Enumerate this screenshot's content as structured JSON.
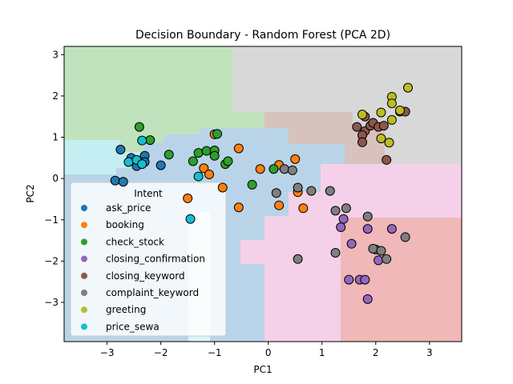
{
  "chart_data": {
    "type": "scatter",
    "title": "Decision Boundary - Random Forest (PCA 2D)",
    "xlabel": "PC1",
    "ylabel": "PC2",
    "xlim": [
      -3.8,
      3.6
    ],
    "ylim": [
      -3.95,
      3.2
    ],
    "xticks": [
      -3,
      -2,
      -1,
      0,
      1,
      2,
      3
    ],
    "yticks": [
      -3,
      -2,
      -1,
      0,
      1,
      2,
      3
    ],
    "grid": false,
    "legend": {
      "title": "Intent",
      "placement": "lower-left"
    },
    "series": [
      {
        "name": "ask_price",
        "color": "#1f77b4",
        "points": [
          [
            -2.75,
            0.7
          ],
          [
            -2.45,
            0.3
          ],
          [
            -2.3,
            0.55
          ],
          [
            -2.55,
            0.5
          ],
          [
            -2.0,
            0.32
          ],
          [
            -2.85,
            -0.05
          ],
          [
            -2.7,
            -0.08
          ],
          [
            -2.3,
            0.4
          ]
        ]
      },
      {
        "name": "booking",
        "color": "#ff7f0e",
        "points": [
          [
            -1.0,
            1.07
          ],
          [
            -0.55,
            0.73
          ],
          [
            -0.85,
            -0.22
          ],
          [
            -0.55,
            -0.7
          ],
          [
            -0.15,
            0.23
          ],
          [
            0.2,
            0.33
          ],
          [
            0.5,
            0.47
          ],
          [
            0.55,
            -0.33
          ],
          [
            0.65,
            -0.72
          ],
          [
            0.2,
            -0.65
          ],
          [
            -1.2,
            0.25
          ],
          [
            -1.1,
            0.1
          ],
          [
            -1.5,
            -0.48
          ]
        ]
      },
      {
        "name": "check_stock",
        "color": "#2ca02c",
        "points": [
          [
            -2.4,
            1.25
          ],
          [
            -2.2,
            0.93
          ],
          [
            -1.85,
            0.58
          ],
          [
            -1.3,
            0.62
          ],
          [
            -1.15,
            0.67
          ],
          [
            -1.0,
            0.68
          ],
          [
            -1.0,
            0.55
          ],
          [
            -0.8,
            0.35
          ],
          [
            -0.75,
            0.42
          ],
          [
            -0.3,
            -0.15
          ],
          [
            0.1,
            0.23
          ],
          [
            -0.95,
            1.08
          ],
          [
            -1.4,
            0.42
          ]
        ]
      },
      {
        "name": "closing_confirmation",
        "color": "#9467bd",
        "points": [
          [
            1.4,
            -0.98
          ],
          [
            1.35,
            -1.18
          ],
          [
            1.55,
            -1.58
          ],
          [
            1.85,
            -1.22
          ],
          [
            2.0,
            -1.72
          ],
          [
            2.05,
            -1.98
          ],
          [
            2.3,
            -1.22
          ],
          [
            1.5,
            -2.45
          ],
          [
            1.7,
            -2.45
          ],
          [
            1.8,
            -2.45
          ],
          [
            1.85,
            -2.92
          ]
        ]
      },
      {
        "name": "closing_keyword",
        "color": "#8c564b",
        "points": [
          [
            1.65,
            1.25
          ],
          [
            1.8,
            1.15
          ],
          [
            1.9,
            1.28
          ],
          [
            1.95,
            1.35
          ],
          [
            2.05,
            1.25
          ],
          [
            2.15,
            1.28
          ],
          [
            1.75,
            1.05
          ],
          [
            1.75,
            0.88
          ],
          [
            2.2,
            0.45
          ],
          [
            2.45,
            1.62
          ],
          [
            2.55,
            1.62
          ],
          [
            1.8,
            1.5
          ]
        ]
      },
      {
        "name": "complaint_keyword",
        "color": "#7f7f7f",
        "points": [
          [
            0.15,
            -0.35
          ],
          [
            0.3,
            0.23
          ],
          [
            0.45,
            0.2
          ],
          [
            0.55,
            -0.22
          ],
          [
            0.8,
            -0.3
          ],
          [
            1.15,
            -0.3
          ],
          [
            1.25,
            -0.78
          ],
          [
            1.45,
            -0.72
          ],
          [
            1.85,
            -0.92
          ],
          [
            1.95,
            -1.7
          ],
          [
            2.1,
            -1.75
          ],
          [
            2.2,
            -1.95
          ],
          [
            2.55,
            -1.42
          ],
          [
            1.25,
            -1.8
          ],
          [
            0.55,
            -1.95
          ]
        ]
      },
      {
        "name": "greeting",
        "color": "#bcbd22",
        "points": [
          [
            2.3,
            1.98
          ],
          [
            2.3,
            1.82
          ],
          [
            2.6,
            2.2
          ],
          [
            2.45,
            1.65
          ],
          [
            2.1,
            1.6
          ],
          [
            2.3,
            1.42
          ],
          [
            1.75,
            1.55
          ],
          [
            2.1,
            0.97
          ],
          [
            2.25,
            0.87
          ]
        ]
      },
      {
        "name": "price_sewa",
        "color": "#17becf",
        "points": [
          [
            -2.35,
            0.92
          ],
          [
            -2.6,
            0.4
          ],
          [
            -2.45,
            0.45
          ],
          [
            -2.35,
            0.35
          ],
          [
            -1.3,
            0.05
          ],
          [
            -1.45,
            -0.98
          ]
        ]
      }
    ]
  }
}
